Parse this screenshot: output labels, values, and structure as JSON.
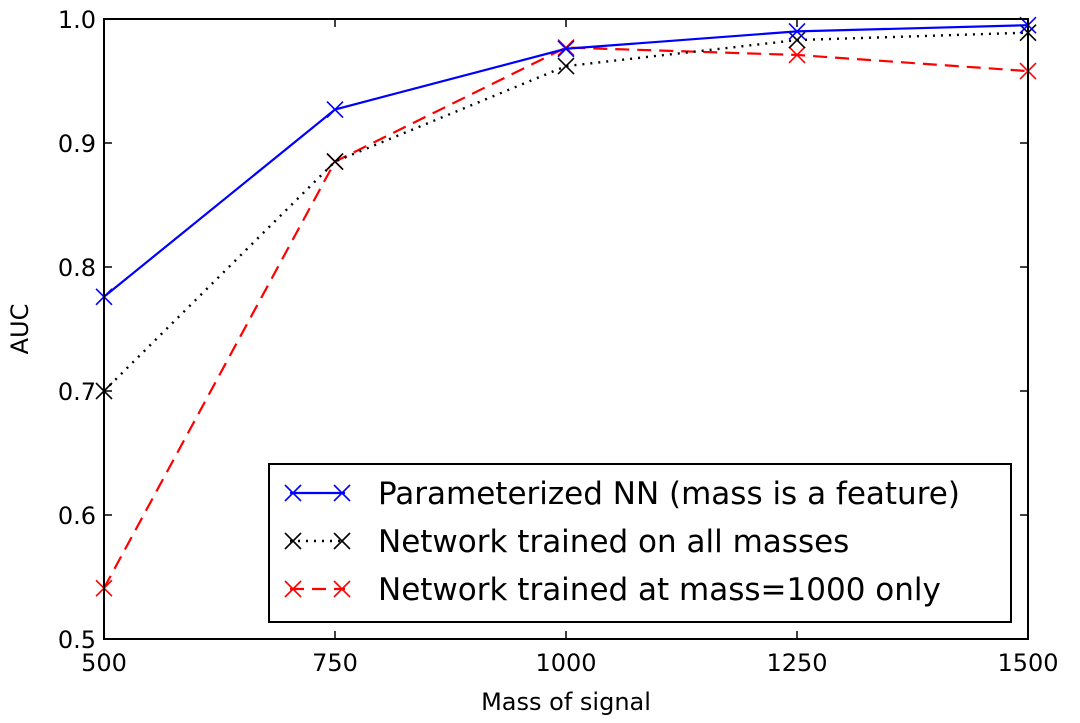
{
  "chart_data": {
    "type": "line",
    "title": "",
    "xlabel": "Mass of signal",
    "ylabel": "AUC",
    "xlim": [
      500,
      1500
    ],
    "ylim": [
      0.5,
      1.0
    ],
    "x_ticks": [
      500,
      750,
      1000,
      1250,
      1500
    ],
    "x_tick_labels": [
      "500",
      "750",
      "1000",
      "1250",
      "1500"
    ],
    "y_ticks": [
      0.5,
      0.6,
      0.7,
      0.8,
      0.9,
      1.0
    ],
    "y_tick_labels": [
      "0.5",
      "0.6",
      "0.7",
      "0.8",
      "0.9",
      "1.0"
    ],
    "grid": false,
    "legend_position": "lower-right",
    "x": [
      500,
      750,
      1000,
      1250,
      1500
    ],
    "series": [
      {
        "name": "Parameterized NN (mass is a feature)",
        "values": [
          0.776,
          0.927,
          0.976,
          0.99,
          0.995
        ],
        "color": "#0000ff",
        "linestyle": "solid",
        "marker": "x"
      },
      {
        "name": "Network trained on all masses",
        "values": [
          0.7,
          0.885,
          0.962,
          0.983,
          0.989
        ],
        "color": "#000000",
        "linestyle": "dotted",
        "marker": "x"
      },
      {
        "name": "Network trained at mass=1000 only",
        "values": [
          0.541,
          0.885,
          0.977,
          0.971,
          0.958
        ],
        "color": "#ff0000",
        "linestyle": "dashed",
        "marker": "x"
      }
    ]
  }
}
